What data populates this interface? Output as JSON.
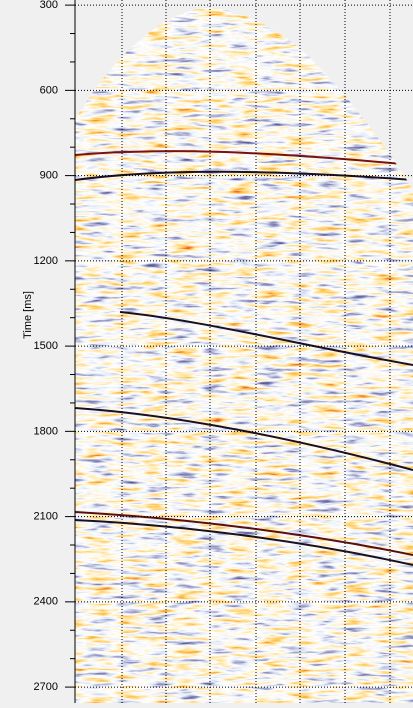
{
  "chart_data": {
    "type": "seismic",
    "ylabel": "Time [ms]",
    "ylim": [
      282,
      2756
    ],
    "y_inverted": true,
    "yticks": [
      300,
      600,
      900,
      1200,
      1500,
      1800,
      2100,
      2400,
      2700
    ],
    "grid": true
  }
}
